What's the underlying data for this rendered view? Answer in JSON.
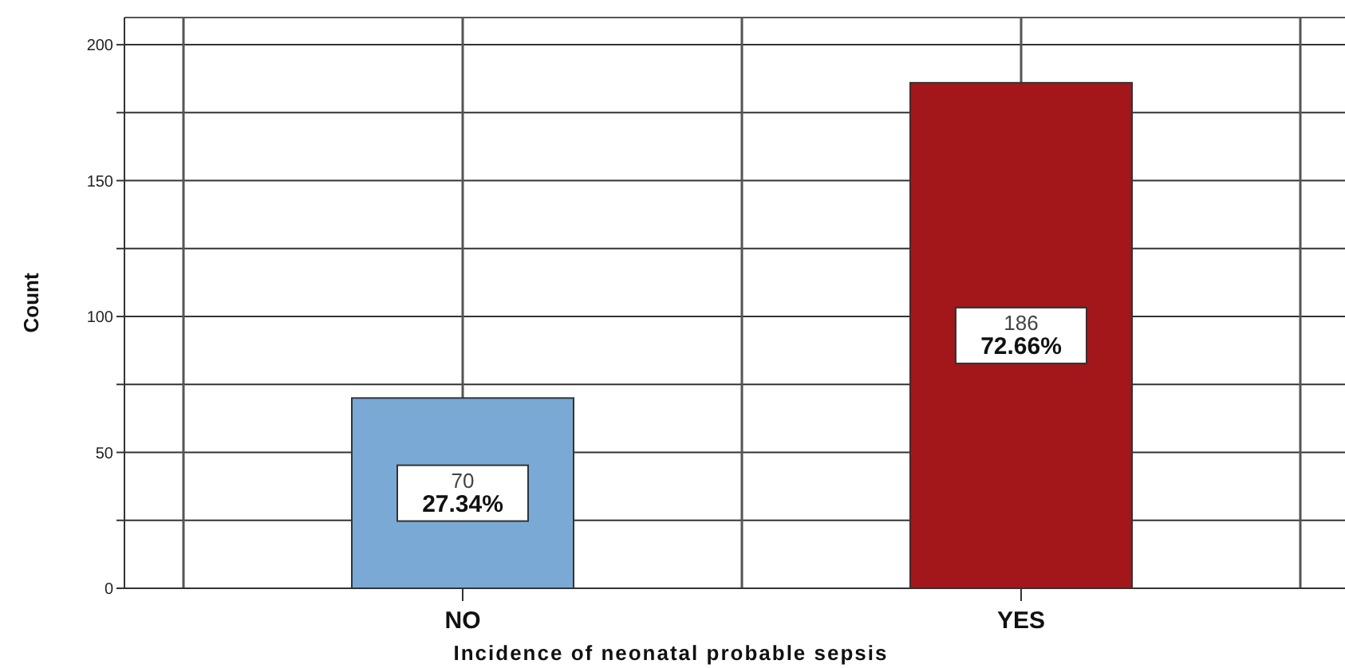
{
  "chart_data": {
    "type": "bar",
    "xlabel": "Incidence of neonatal probable sepsis",
    "ylabel": "Count",
    "categories": [
      "NO",
      "YES"
    ],
    "values": [
      70,
      186
    ],
    "colors": [
      "#7aa9d6",
      "#a3161a"
    ],
    "value_labels": [
      "70\n27.34%",
      "186\n72.66%"
    ],
    "ylim": [
      0,
      210
    ],
    "yticks": [
      0,
      {
        "value": 25,
        "label": null
      },
      50,
      {
        "value": 75,
        "label": null
      },
      100,
      {
        "value": 125,
        "label": null
      },
      150,
      {
        "value": 175,
        "label": null
      },
      200
    ],
    "grid": true
  }
}
